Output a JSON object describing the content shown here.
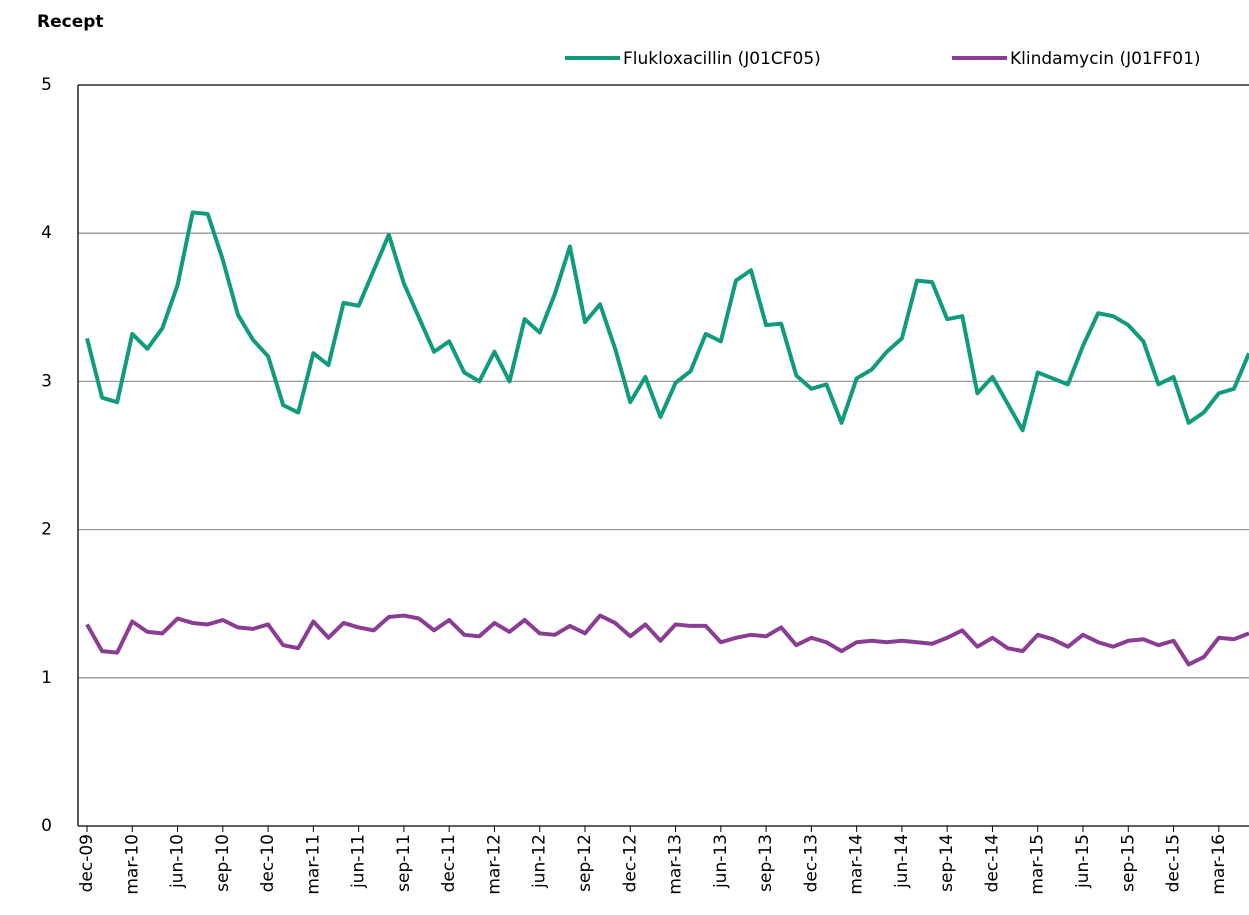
{
  "chart_data": {
    "type": "line",
    "title": "Recept",
    "categories": [
      "dec-09",
      null,
      null,
      "mar-10",
      null,
      null,
      "jun-10",
      null,
      null,
      "sep-10",
      null,
      null,
      "dec-10",
      null,
      null,
      "mar-11",
      null,
      null,
      "jun-11",
      null,
      null,
      "sep-11",
      null,
      null,
      "dec-11",
      null,
      null,
      "mar-12",
      null,
      null,
      "jun-12",
      null,
      null,
      "sep-12",
      null,
      null,
      "dec-12",
      null,
      null,
      "mar-13",
      null,
      null,
      "jun-13",
      null,
      null,
      "sep-13",
      null,
      null,
      "dec-13",
      null,
      null,
      "mar-14",
      null,
      null,
      "jun-14",
      null,
      null,
      "sep-14",
      null,
      null,
      "dec-14",
      null,
      null,
      "mar-15",
      null,
      null,
      "jun-15",
      null,
      null,
      "sep-15",
      null,
      null,
      "dec-15",
      null,
      null,
      "mar-16",
      null,
      null
    ],
    "series": [
      {
        "name": "Flukloxacillin (J01CF05)",
        "color": "#109b7d",
        "values": [
          3.29,
          2.89,
          2.86,
          3.32,
          3.22,
          3.36,
          3.65,
          4.14,
          4.13,
          3.82,
          3.45,
          3.28,
          3.17,
          2.84,
          2.79,
          3.19,
          3.11,
          3.53,
          3.51,
          3.75,
          3.99,
          3.66,
          3.43,
          3.2,
          3.27,
          3.06,
          3.0,
          3.2,
          3.0,
          3.42,
          3.33,
          3.59,
          3.91,
          3.4,
          3.52,
          3.22,
          2.86,
          3.03,
          2.76,
          2.99,
          3.07,
          3.32,
          3.27,
          3.68,
          3.75,
          3.38,
          3.39,
          3.04,
          2.95,
          2.98,
          2.72,
          3.02,
          3.08,
          3.2,
          3.29,
          3.68,
          3.67,
          3.42,
          3.44,
          2.92,
          3.03,
          2.85,
          2.67,
          3.06,
          3.02,
          2.98,
          3.24,
          3.46,
          3.44,
          3.38,
          3.27,
          2.98,
          3.03,
          2.72,
          2.79,
          2.92,
          2.95,
          3.19
        ]
      },
      {
        "name": "Klindamycin (J01FF01)",
        "color": "#8b3d93",
        "values": [
          1.36,
          1.18,
          1.17,
          1.38,
          1.31,
          1.3,
          1.4,
          1.37,
          1.36,
          1.39,
          1.34,
          1.33,
          1.36,
          1.22,
          1.2,
          1.38,
          1.27,
          1.37,
          1.34,
          1.32,
          1.41,
          1.42,
          1.4,
          1.32,
          1.39,
          1.29,
          1.28,
          1.37,
          1.31,
          1.39,
          1.3,
          1.29,
          1.35,
          1.3,
          1.42,
          1.37,
          1.28,
          1.36,
          1.25,
          1.36,
          1.35,
          1.35,
          1.24,
          1.27,
          1.29,
          1.28,
          1.34,
          1.22,
          1.27,
          1.24,
          1.18,
          1.24,
          1.25,
          1.24,
          1.25,
          1.24,
          1.23,
          1.27,
          1.32,
          1.21,
          1.27,
          1.2,
          1.18,
          1.29,
          1.26,
          1.21,
          1.29,
          1.24,
          1.21,
          1.25,
          1.26,
          1.22,
          1.25,
          1.09,
          1.14,
          1.27,
          1.26,
          1.3
        ]
      }
    ],
    "ylim": [
      0,
      5
    ],
    "yticks": [
      0,
      1,
      2,
      3,
      4,
      5
    ],
    "grid": true,
    "legend": "top-right"
  }
}
